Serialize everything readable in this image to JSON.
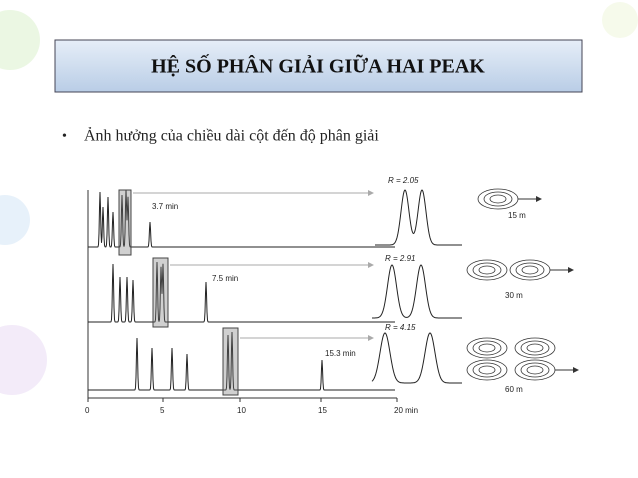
{
  "header": {
    "title": "HỆ SỐ PHÂN GIẢI GIỮA HAI PEAK"
  },
  "bullets": [
    "Ảnh hưởng của chiều dài cột đến độ phân giải"
  ],
  "figure": {
    "traces": [
      {
        "time_label": "3.7 min",
        "resolution_label": "R = 2.05",
        "column_label": "15 m"
      },
      {
        "time_label": "7.5 min",
        "resolution_label": "R = 2.91",
        "column_label": "30 m"
      },
      {
        "time_label": "15.3 min",
        "resolution_label": "R = 4.15",
        "column_label": "60 m"
      }
    ],
    "axis_labels": [
      "0",
      "5",
      "10",
      "15",
      "20 min"
    ]
  }
}
